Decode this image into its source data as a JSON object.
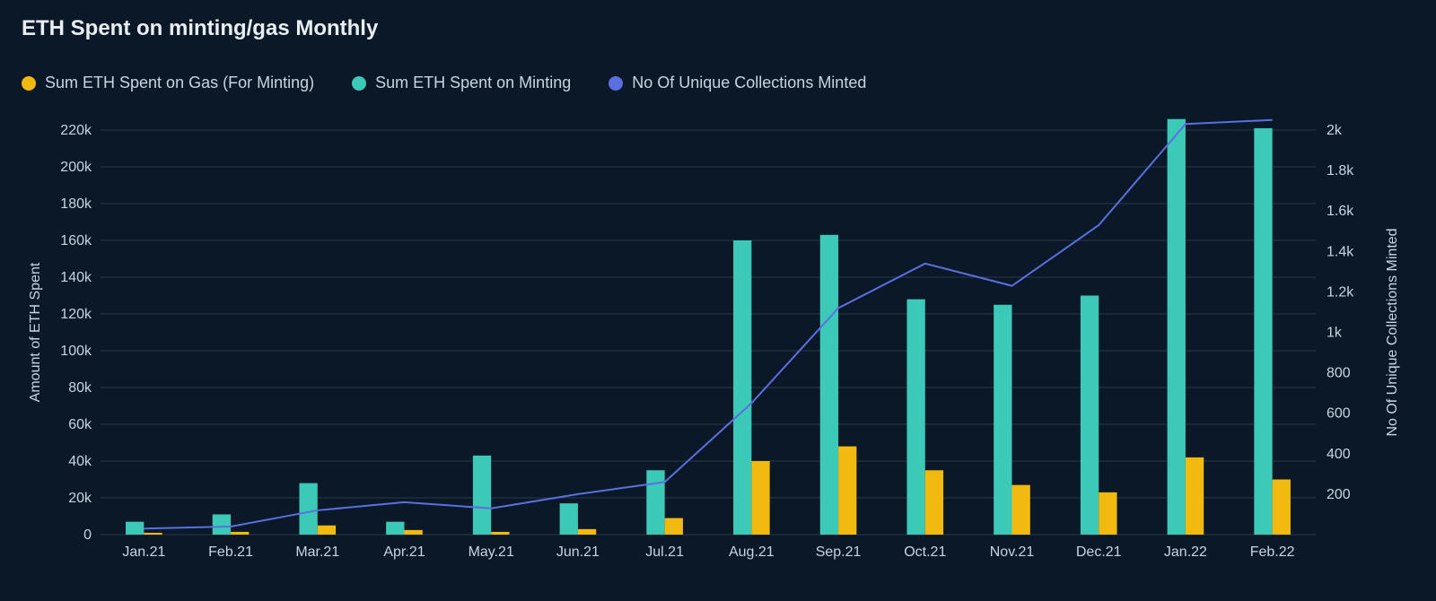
{
  "chart": {
    "type": "bar+line",
    "title": "ETH Spent on minting/gas Monthly",
    "title_fontsize": 24,
    "background_color": "#0a1828",
    "text_color": "#c8d4e0",
    "grid_color": "#2a3a4a",
    "legend": [
      {
        "label": "Sum ETH Spent on Gas (For Minting)",
        "color": "#f2b90f",
        "type": "bar"
      },
      {
        "label": "Sum ETH Spent on Minting",
        "color": "#3cc9b8",
        "type": "bar"
      },
      {
        "label": "No Of Unique Collections Minted",
        "color": "#5b6fe0",
        "type": "line"
      }
    ],
    "categories": [
      "Jan.21",
      "Feb.21",
      "Mar.21",
      "Apr.21",
      "May.21",
      "Jun.21",
      "Jul.21",
      "Aug.21",
      "Sep.21",
      "Oct.21",
      "Nov.21",
      "Dec.21",
      "Jan.22",
      "Feb.22"
    ],
    "series_minting": {
      "color": "#3cc9b8",
      "values": [
        7000,
        11000,
        28000,
        7000,
        43000,
        17000,
        35000,
        160000,
        163000,
        128000,
        125000,
        130000,
        226000,
        221000
      ]
    },
    "series_gas": {
      "color": "#f2b90f",
      "values": [
        1000,
        1500,
        5000,
        2500,
        1500,
        3000,
        9000,
        40000,
        48000,
        35000,
        27000,
        23000,
        42000,
        30000
      ]
    },
    "series_line": {
      "color": "#5b6fe0",
      "values": [
        30,
        40,
        120,
        160,
        130,
        200,
        260,
        650,
        1120,
        1340,
        1230,
        1530,
        2030,
        2050
      ]
    },
    "y_left": {
      "label": "Amount of ETH Spent",
      "min": 0,
      "max": 220000,
      "ticks": [
        0,
        20000,
        40000,
        60000,
        80000,
        100000,
        120000,
        140000,
        160000,
        180000,
        200000,
        220000
      ],
      "tick_labels": [
        "0",
        "20k",
        "40k",
        "60k",
        "80k",
        "100k",
        "120k",
        "140k",
        "160k",
        "180k",
        "200k",
        "220k"
      ]
    },
    "y_right": {
      "label": "No Of Unique Collections Minted",
      "min": 0,
      "max": 2000,
      "ticks": [
        200,
        400,
        600,
        800,
        1000,
        1200,
        1400,
        1600,
        1800,
        2000
      ],
      "tick_labels": [
        "200",
        "400",
        "600",
        "800",
        "1k",
        "1.2k",
        "1.4k",
        "1.6k",
        "1.8k",
        "2k"
      ]
    },
    "bar_group_width": 0.42,
    "line_width": 2,
    "label_fontsize": 16
  }
}
